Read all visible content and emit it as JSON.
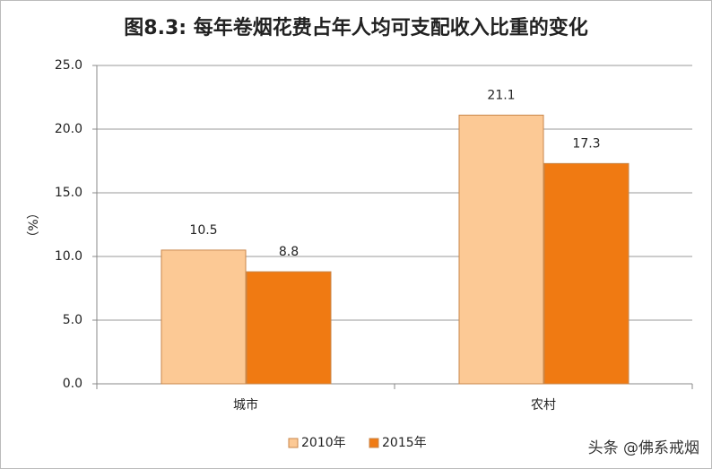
{
  "chart_data": {
    "type": "bar",
    "title": "图8.3: 每年卷烟花费占年人均可支配收入比重的变化",
    "y_label": "（%）",
    "categories": [
      "城市",
      "农村"
    ],
    "series": [
      {
        "name": "2010年",
        "color": "#fcc995",
        "values": [
          10.5,
          21.1
        ]
      },
      {
        "name": "2015年",
        "color": "#f07a12",
        "values": [
          8.8,
          17.3
        ]
      }
    ],
    "ylim": [
      0,
      25
    ],
    "yticks": [
      {
        "value": 0,
        "label": "0.0"
      },
      {
        "value": 5,
        "label": "5.0"
      },
      {
        "value": 10,
        "label": "10.0"
      },
      {
        "value": 15,
        "label": "15.0"
      },
      {
        "value": 20,
        "label": "20.0"
      },
      {
        "value": 25,
        "label": "25.0"
      }
    ],
    "grid": true,
    "legend": "bottom",
    "watermark": "头条 @佛系戒烟"
  }
}
